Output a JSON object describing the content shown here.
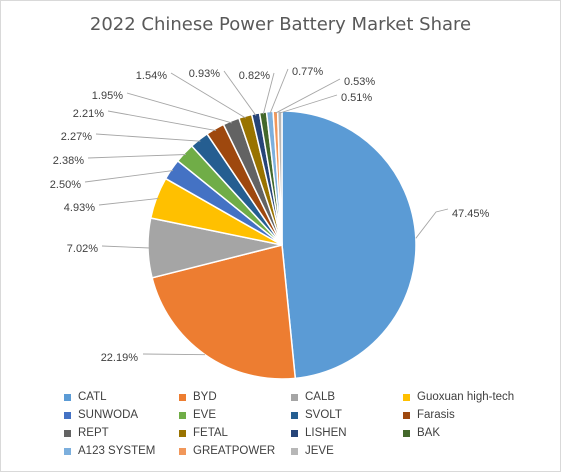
{
  "chart_data": {
    "type": "pie",
    "title": "2022 Chinese Power Battery Market Share",
    "slices": [
      {
        "name": "CATL",
        "value": 47.45,
        "label": "47.45%",
        "color": "#5b9bd5"
      },
      {
        "name": "BYD",
        "value": 22.19,
        "label": "22.19%",
        "color": "#ed7d31"
      },
      {
        "name": "CALB",
        "value": 7.02,
        "label": "7.02%",
        "color": "#a5a5a5"
      },
      {
        "name": "Guoxuan high-tech",
        "value": 4.93,
        "label": "4.93%",
        "color": "#ffc000"
      },
      {
        "name": "SUNWODA",
        "value": 2.5,
        "label": "2.50%",
        "color": "#4472c4"
      },
      {
        "name": "EVE",
        "value": 2.38,
        "label": "2.38%",
        "color": "#70ad47"
      },
      {
        "name": "SVOLT",
        "value": 2.27,
        "label": "2.27%",
        "color": "#255e91"
      },
      {
        "name": "Farasis",
        "value": 2.21,
        "label": "2.21%",
        "color": "#9e480e"
      },
      {
        "name": "REPT",
        "value": 1.95,
        "label": "1.95%",
        "color": "#636363"
      },
      {
        "name": "FETAL",
        "value": 1.54,
        "label": "1.54%",
        "color": "#997300"
      },
      {
        "name": "LISHEN",
        "value": 0.93,
        "label": "0.93%",
        "color": "#264478"
      },
      {
        "name": "BAK",
        "value": 0.82,
        "label": "0.82%",
        "color": "#43682b"
      },
      {
        "name": "A123 SYSTEM",
        "value": 0.77,
        "label": "0.77%",
        "color": "#7cafdd"
      },
      {
        "name": "GREATPOWER",
        "value": 0.53,
        "label": "0.53%",
        "color": "#f1975a"
      },
      {
        "name": "JEVE",
        "value": 0.51,
        "label": "0.51%",
        "color": "#b7b7b7"
      }
    ],
    "legend_position": "bottom"
  }
}
